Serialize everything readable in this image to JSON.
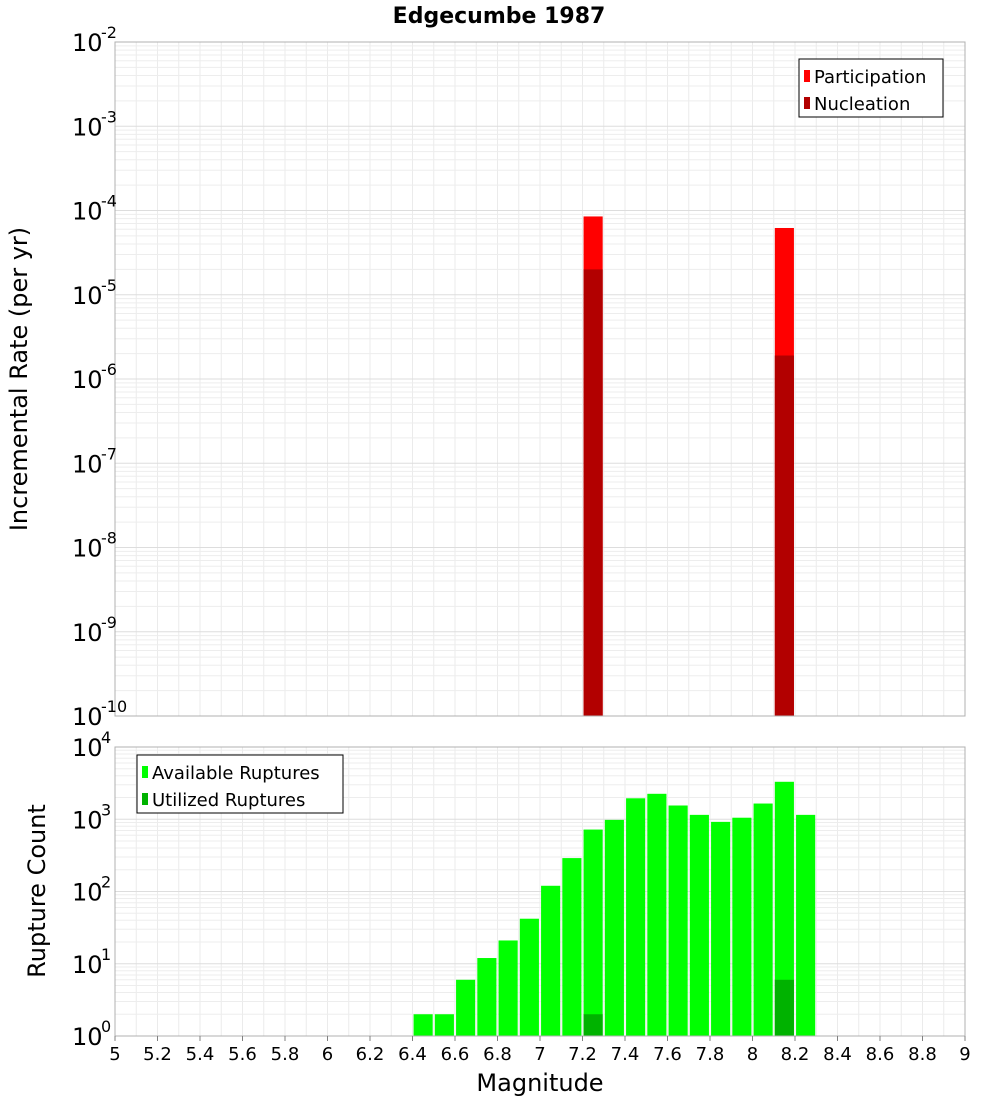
{
  "chart_data": [
    {
      "type": "bar",
      "title": "Edgecumbe 1987",
      "xlabel": "",
      "ylabel": "Incremental Rate (per yr)",
      "yscale": "log",
      "xlim": [
        5,
        9
      ],
      "ylim_exponents": [
        -10,
        -2
      ],
      "grid": true,
      "legend_position": "top-right",
      "bar_width": 0.09,
      "series": [
        {
          "name": "Participation",
          "color": "#ff0000",
          "points": [
            {
              "x": 7.25,
              "y": 8.5e-05
            },
            {
              "x": 8.15,
              "y": 6.2e-05
            }
          ]
        },
        {
          "name": "Nucleation",
          "color": "#b20000",
          "points": [
            {
              "x": 7.25,
              "y": 2e-05
            },
            {
              "x": 8.15,
              "y": 1.9e-06
            }
          ]
        }
      ]
    },
    {
      "type": "bar",
      "title": "",
      "xlabel": "Magnitude",
      "ylabel": "Rupture Count",
      "yscale": "log",
      "xlim": [
        5,
        9
      ],
      "ylim_exponents": [
        0,
        4
      ],
      "grid": true,
      "legend_position": "top-left",
      "bar_width": 0.09,
      "x_ticks": [
        "5",
        "5.2",
        "5.4",
        "5.6",
        "5.8",
        "6",
        "6.2",
        "6.4",
        "6.6",
        "6.8",
        "7",
        "7.2",
        "7.4",
        "7.6",
        "7.8",
        "8",
        "8.2",
        "8.4",
        "8.6",
        "8.8",
        "9"
      ],
      "series": [
        {
          "name": "Available Ruptures",
          "color": "#00ff00",
          "points": [
            {
              "x": 6.45,
              "y": 2
            },
            {
              "x": 6.55,
              "y": 2
            },
            {
              "x": 6.65,
              "y": 6
            },
            {
              "x": 6.75,
              "y": 12
            },
            {
              "x": 6.85,
              "y": 21
            },
            {
              "x": 6.95,
              "y": 42
            },
            {
              "x": 7.05,
              "y": 120
            },
            {
              "x": 7.15,
              "y": 290
            },
            {
              "x": 7.25,
              "y": 720
            },
            {
              "x": 7.35,
              "y": 980
            },
            {
              "x": 7.45,
              "y": 1950
            },
            {
              "x": 7.55,
              "y": 2250
            },
            {
              "x": 7.65,
              "y": 1550
            },
            {
              "x": 7.75,
              "y": 1150
            },
            {
              "x": 7.85,
              "y": 920
            },
            {
              "x": 7.95,
              "y": 1050
            },
            {
              "x": 8.05,
              "y": 1650
            },
            {
              "x": 8.15,
              "y": 3300
            },
            {
              "x": 8.25,
              "y": 1150
            }
          ]
        },
        {
          "name": "Utilized Ruptures",
          "color": "#00b200",
          "points": [
            {
              "x": 7.25,
              "y": 2
            },
            {
              "x": 7.65,
              "y": 1
            },
            {
              "x": 8.05,
              "y": 1
            },
            {
              "x": 8.15,
              "y": 6
            }
          ]
        }
      ]
    }
  ]
}
